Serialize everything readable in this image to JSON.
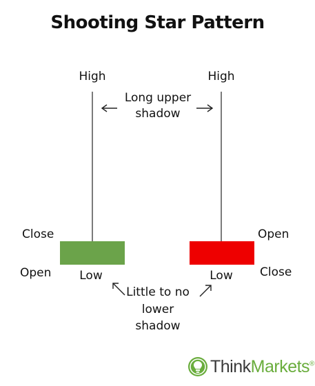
{
  "title": "Shooting Star Pattern",
  "labels": {
    "left_high": "High",
    "right_high": "High",
    "upper_shadow_line1": "Long upper",
    "upper_shadow_line2": "shadow",
    "left_close": "Close",
    "left_open": "Open",
    "left_low": "Low",
    "right_open": "Open",
    "right_close": "Close",
    "right_low": "Low",
    "lower_shadow_line1": "Little to no",
    "lower_shadow_line2": "lower",
    "lower_shadow_line3": "shadow"
  },
  "candles": {
    "bullish_color": "#6ba34a",
    "bearish_color": "#ee0000"
  },
  "brand": {
    "name_part1": "Think",
    "name_part2": "Markets",
    "reg_mark": "®",
    "icon": "lightbulb-icon",
    "primary_color": "#6aad3d"
  }
}
